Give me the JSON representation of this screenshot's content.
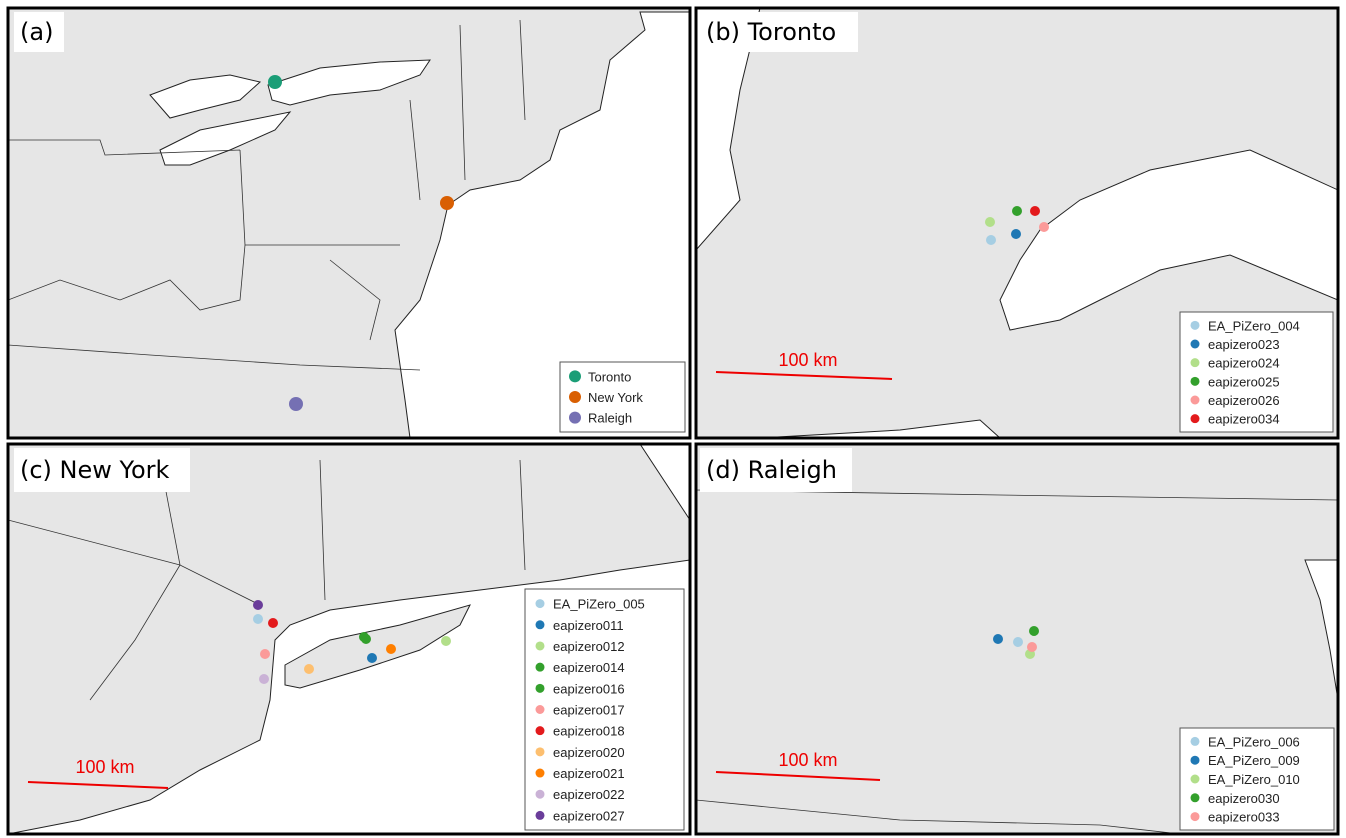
{
  "panels": [
    {
      "label": "(a)",
      "legend": [
        {
          "name": "Toronto",
          "color": "#1b9e77"
        },
        {
          "name": "New York",
          "color": "#d95f02"
        },
        {
          "name": "Raleigh",
          "color": "#7570b3"
        }
      ]
    },
    {
      "label": "(b) Toronto",
      "scale_label": "100 km",
      "legend": [
        {
          "name": "EA_PiZero_004",
          "color": "#a6cee3"
        },
        {
          "name": "eapizero023",
          "color": "#1f78b4"
        },
        {
          "name": "eapizero024",
          "color": "#b2df8a"
        },
        {
          "name": "eapizero025",
          "color": "#33a02c"
        },
        {
          "name": "eapizero026",
          "color": "#fb9a99"
        },
        {
          "name": "eapizero034",
          "color": "#e31a1c"
        }
      ]
    },
    {
      "label": "(c) New York",
      "scale_label": "100 km",
      "legend": [
        {
          "name": "EA_PiZero_005",
          "color": "#a6cee3"
        },
        {
          "name": "eapizero011",
          "color": "#1f78b4"
        },
        {
          "name": "eapizero012",
          "color": "#b2df8a"
        },
        {
          "name": "eapizero014",
          "color": "#33a02c"
        },
        {
          "name": "eapizero016",
          "color": "#33a02c"
        },
        {
          "name": "eapizero017",
          "color": "#fb9a99"
        },
        {
          "name": "eapizero018",
          "color": "#e31a1c"
        },
        {
          "name": "eapizero020",
          "color": "#fdbf6f"
        },
        {
          "name": "eapizero021",
          "color": "#ff7f00"
        },
        {
          "name": "eapizero022",
          "color": "#cab2d6"
        },
        {
          "name": "eapizero027",
          "color": "#6a3d9a"
        }
      ]
    },
    {
      "label": "(d) Raleigh",
      "scale_label": "100 km",
      "legend": [
        {
          "name": "EA_PiZero_006",
          "color": "#a6cee3"
        },
        {
          "name": "EA_PiZero_009",
          "color": "#1f78b4"
        },
        {
          "name": "EA_PiZero_010",
          "color": "#b2df8a"
        },
        {
          "name": "eapizero030",
          "color": "#33a02c"
        },
        {
          "name": "eapizero033",
          "color": "#fb9a99"
        }
      ]
    }
  ]
}
